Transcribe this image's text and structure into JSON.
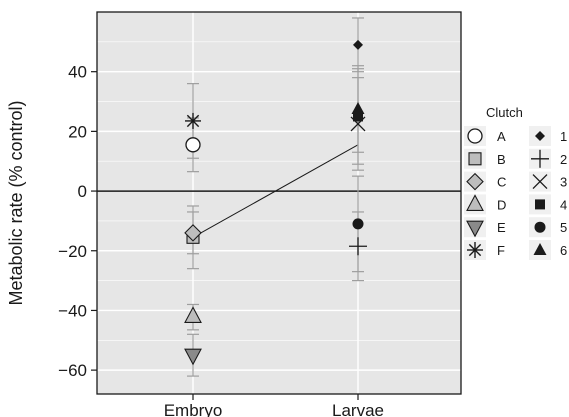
{
  "chart_data": {
    "type": "scatter",
    "ylabel": "Metabolic rate (% control)",
    "xlabel": "",
    "categories": [
      "Embryo",
      "Larvae"
    ],
    "ylim": [
      -68,
      60
    ],
    "yticks": [
      -60,
      -40,
      -20,
      0,
      20,
      40
    ],
    "ytick_labels": [
      "−60",
      "−40",
      "−20",
      "0",
      "20",
      "40"
    ],
    "grid": true,
    "legend_placement": "right",
    "legend_title": "Clutch",
    "colors": {
      "panel": "#e6e6e6",
      "grid": "#ffffff",
      "marker_fill": "#bdbdbd",
      "error_bar": "#9e9e9e",
      "ink": "#1a1a1a"
    },
    "mean_line": {
      "y": [
        -15.5,
        15.5
      ]
    },
    "series_embryo": [
      {
        "name": "A",
        "marker": "open-circle",
        "y": 15.5,
        "ylow": 6.5,
        "yhigh": 24.5
      },
      {
        "name": "B",
        "marker": "square",
        "y": -15.5,
        "ylow": -26,
        "yhigh": -5
      },
      {
        "name": "C",
        "marker": "diamond",
        "y": -14,
        "ylow": -21,
        "yhigh": -7
      },
      {
        "name": "D",
        "marker": "triangle-up",
        "y": -42,
        "ylow": -46.5,
        "yhigh": -38
      },
      {
        "name": "E",
        "marker": "triangle-down",
        "y": -55,
        "ylow": -62,
        "yhigh": -48
      },
      {
        "name": "F",
        "marker": "asterisk",
        "y": 23.5,
        "ylow": 11,
        "yhigh": 36
      }
    ],
    "series_larvae": [
      {
        "name": "1",
        "marker": "small-diamond",
        "y": 49,
        "ylow": 40,
        "yhigh": 58
      },
      {
        "name": "2",
        "marker": "plus",
        "y": -18.5,
        "ylow": -30,
        "yhigh": -7
      },
      {
        "name": "3",
        "marker": "cross",
        "y": 22.5,
        "ylow": 7,
        "yhigh": 38
      },
      {
        "name": "4",
        "marker": "filled-square",
        "y": 25,
        "ylow": 9,
        "yhigh": 41
      },
      {
        "name": "5",
        "marker": "filled-circle",
        "y": -11,
        "ylow": -27,
        "yhigh": 5
      },
      {
        "name": "6",
        "marker": "filled-triangle",
        "y": 27.5,
        "ylow": 13,
        "yhigh": 42
      }
    ]
  }
}
